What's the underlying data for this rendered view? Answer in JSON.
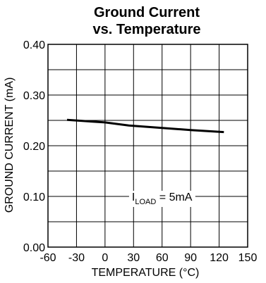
{
  "chart_data": {
    "type": "line",
    "title_lines": [
      "Ground Current",
      "vs. Temperature"
    ],
    "xlabel": "TEMPERATURE (°C)",
    "ylabel": "GROUND CURRENT (mA)",
    "xlim": [
      -60,
      150
    ],
    "ylim": [
      0,
      0.4
    ],
    "x_ticks": [
      -60,
      -30,
      0,
      30,
      60,
      90,
      120,
      150
    ],
    "x_tick_labels": [
      "-60",
      "-30",
      "0",
      "30",
      "60",
      "90",
      "120",
      "150"
    ],
    "y_ticks": [
      0,
      0.1,
      0.2,
      0.3,
      0.4
    ],
    "y_tick_labels": [
      "0.00",
      "0.10",
      "0.20",
      "0.30",
      "0.40"
    ],
    "grid": true,
    "annotation": {
      "main": "I",
      "sub": "LOAD",
      "rest": " = 5mA"
    },
    "series": [
      {
        "x": [
          -40,
          0,
          25,
          60,
          90,
          125
        ],
        "y": [
          0.251,
          0.246,
          0.24,
          0.235,
          0.231,
          0.227
        ]
      }
    ]
  }
}
